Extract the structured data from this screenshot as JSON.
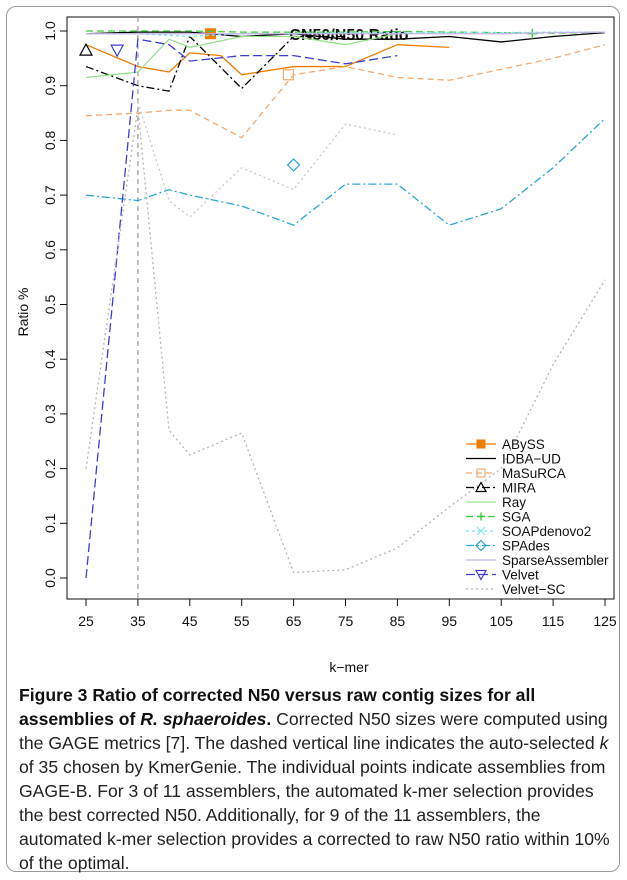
{
  "figure": {
    "caption_label": "Figure 3",
    "caption_title_pre": "Ratio of corrected N50 versus raw contig sizes for all assemblies of ",
    "caption_title_species": "R. sphaeroides",
    "caption_title_post": ".",
    "caption_text_1": " Corrected N50 sizes were computed using the GAGE metrics [7]. The dashed vertical line indicates the auto-selected ",
    "caption_k": "k",
    "caption_text_2": " of 35 chosen by KmerGenie. The individual points indicate assemblies from GAGE-B. For 3 of 11 assemblers, the automated k-mer selection provides the best corrected N50. Additionally, for 9 of the 11 assemblers, the automated k-mer selection provides a corrected to raw N50 ratio within 10% of the optimal."
  },
  "chart_data": {
    "type": "line",
    "title": "CN50/N50 Ratio",
    "xlabel": "k−mer",
    "ylabel": "Ratio %",
    "xlim": [
      25,
      125
    ],
    "ylim": [
      0.0,
      1.0
    ],
    "x_ticks": [
      25,
      35,
      45,
      55,
      65,
      75,
      85,
      95,
      105,
      115,
      125
    ],
    "y_ticks": [
      0.0,
      0.1,
      0.2,
      0.3,
      0.4,
      0.5,
      0.6,
      0.7,
      0.8,
      0.9,
      1.0
    ],
    "y_tick_labels": [
      "0.0",
      "0.1",
      "0.2",
      "0.3",
      "0.4",
      "0.5",
      "0.6",
      "0.7",
      "0.8",
      "0.9",
      "1.0"
    ],
    "selected_k": 35,
    "legend_position": "bottom-right",
    "grid": false,
    "series": [
      {
        "name": "ABySS",
        "color": "#f07c00",
        "dash": "",
        "marker": "square-filled",
        "x": [
          25,
          35,
          41,
          45,
          51,
          55,
          65,
          75,
          85,
          95
        ],
        "y": [
          0.975,
          0.935,
          0.925,
          0.96,
          0.955,
          0.92,
          0.935,
          0.935,
          0.975,
          0.97
        ],
        "point": [
          49,
          0.995
        ]
      },
      {
        "name": "IDBA−UD",
        "color": "#000000",
        "dash": "",
        "marker": "none",
        "x": [
          25,
          35,
          45,
          55,
          65,
          75,
          85,
          95,
          105,
          115,
          125
        ],
        "y": [
          0.995,
          0.998,
          0.998,
          0.99,
          0.995,
          0.985,
          0.985,
          0.99,
          0.98,
          0.99,
          0.997
        ],
        "point": null
      },
      {
        "name": "MaSuRCA",
        "color": "#f5a970",
        "dash": "6,4",
        "marker": "square-open",
        "x": [
          25,
          35,
          41,
          45,
          55,
          65,
          75,
          85,
          95,
          105,
          115,
          125
        ],
        "y": [
          0.845,
          0.85,
          0.855,
          0.855,
          0.805,
          0.92,
          0.935,
          0.915,
          0.91,
          0.93,
          0.95,
          0.975
        ],
        "point": [
          64,
          0.92
        ]
      },
      {
        "name": "MIRA",
        "color": "#000000",
        "dash": "8,3,2,3",
        "marker": "triangle-up-open",
        "x": [
          25,
          35,
          41,
          45,
          55,
          65,
          75
        ],
        "y": [
          0.935,
          0.9,
          0.89,
          0.99,
          0.895,
          0.99,
          0.99
        ],
        "point": [
          25,
          0.965
        ]
      },
      {
        "name": "Ray",
        "color": "#98e28e",
        "dash": "",
        "marker": "none",
        "x": [
          25,
          35,
          41,
          45,
          55,
          65,
          75,
          85
        ],
        "y": [
          0.915,
          0.925,
          0.985,
          0.97,
          0.99,
          0.99,
          0.975,
          0.995
        ],
        "point": null
      },
      {
        "name": "SGA",
        "color": "#3ccc3c",
        "dash": "7,4",
        "marker": "plus",
        "x": [
          25,
          35,
          45,
          55,
          65,
          75,
          85,
          95,
          105,
          115,
          125
        ],
        "y": [
          1.0,
          1.0,
          1.0,
          0.998,
          0.998,
          0.998,
          0.999,
          0.998,
          0.997,
          0.996,
          0.998
        ],
        "point": [
          111,
          0.995
        ]
      },
      {
        "name": "SOAPdenovo2",
        "color": "#7fe3f0",
        "dash": "3,3",
        "marker": "cross",
        "x": [
          25,
          35,
          45,
          55,
          65,
          75,
          85,
          95,
          105,
          115,
          125
        ],
        "y": [
          0.995,
          0.995,
          0.99,
          0.995,
          0.995,
          0.997,
          0.997,
          0.997,
          0.997,
          0.998,
          0.998
        ],
        "point": null
      },
      {
        "name": "SPAdes",
        "color": "#2aa7d6",
        "dash": "8,3,2,3",
        "marker": "diamond-open",
        "x": [
          25,
          35,
          41,
          45,
          55,
          65,
          75,
          85,
          95,
          105,
          115,
          125
        ],
        "y": [
          0.7,
          0.69,
          0.71,
          0.7,
          0.68,
          0.645,
          0.72,
          0.72,
          0.645,
          0.675,
          0.75,
          0.84
        ],
        "point": [
          65,
          0.755
        ]
      },
      {
        "name": "SparseAssembler",
        "color": "#c2b4e6",
        "dash": "",
        "marker": "none",
        "x": [
          25,
          35,
          45,
          55,
          65,
          75,
          85,
          95,
          105,
          115,
          125
        ],
        "y": [
          0.995,
          0.995,
          0.995,
          0.995,
          0.995,
          0.995,
          0.995,
          0.995,
          0.995,
          0.997,
          0.998
        ],
        "point": null
      },
      {
        "name": "Velvet",
        "color": "#3d3dd6",
        "dash": "9,4",
        "marker": "triangle-down-open",
        "x": [
          25,
          35,
          41,
          45,
          55,
          65,
          75,
          85
        ],
        "y": [
          0.0,
          0.985,
          0.975,
          0.945,
          0.955,
          0.955,
          0.94,
          0.955
        ],
        "point": [
          31,
          0.965
        ]
      },
      {
        "name": "Velvet−SC",
        "color": "#b4b4b4",
        "dash": "2,3",
        "marker": "none",
        "x": [
          25,
          35,
          41,
          45,
          55,
          65,
          75,
          85,
          95,
          105,
          115,
          125
        ],
        "y": [
          0.2,
          0.86,
          0.27,
          0.225,
          0.265,
          0.01,
          0.015,
          0.055,
          0.13,
          0.2,
          0.39,
          0.545
        ],
        "point": null
      },
      {
        "name": "",
        "color": "#c8c8c8",
        "dash": "2,3",
        "marker": "none",
        "legend": false,
        "x": [
          35,
          41,
          45,
          55,
          65,
          75,
          85
        ],
        "y": [
          0.87,
          0.69,
          0.66,
          0.75,
          0.71,
          0.83,
          0.81
        ],
        "point": null
      }
    ]
  }
}
